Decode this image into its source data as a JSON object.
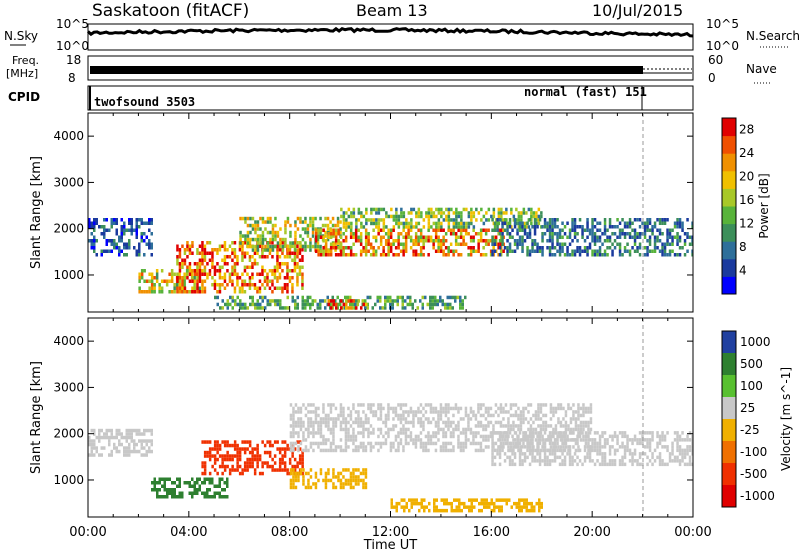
{
  "header": {
    "station": "Saskatoon (fitACF)",
    "beam": "Beam 13",
    "date": "10/Jul/2015"
  },
  "strips": {
    "nsky_label": "N.Sky",
    "nsky_ticks": [
      "10^5",
      "10^0"
    ],
    "nsearch_label": "N.Search",
    "nsearch_ticks": [
      "10^5",
      "10^0"
    ],
    "freq_label": "Freq.",
    "freq_unit": "[MHz]",
    "freq_ticks": [
      "18",
      "8"
    ],
    "nave_label": "Nave",
    "nave_ticks": [
      "60",
      "0"
    ],
    "cpid_label": "CPID",
    "cpid_mode1": "twofsound 3503",
    "cpid_mode2": "normal (fast) 151"
  },
  "chart_data": [
    {
      "type": "heatmap",
      "title": "",
      "ylabel": "Slant Range [km]",
      "xlabel": "",
      "xlim": [
        "00:00",
        "24:00"
      ],
      "ylim": [
        200,
        4500
      ],
      "yticks": [
        "1000",
        "2000",
        "3000",
        "4000"
      ],
      "colorbar": {
        "label": "Power [dB]",
        "ticks": [
          "4",
          "8",
          "12",
          "16",
          "20",
          "24",
          "28"
        ],
        "range": [
          0,
          30
        ],
        "colors": [
          "#0000ff",
          "#1a3a9e",
          "#2e6f9a",
          "#3c8f5a",
          "#58b33a",
          "#a8c828",
          "#f0c000",
          "#f09000",
          "#f05000",
          "#e00000"
        ]
      },
      "echo_regions": [
        {
          "t0": 0.0,
          "t1": 2.5,
          "r0": 1400,
          "r1": 2200,
          "value": 6
        },
        {
          "t0": 2.0,
          "t1": 4.5,
          "r0": 600,
          "r1": 1100,
          "value": 18
        },
        {
          "t0": 3.5,
          "t1": 8.5,
          "r0": 600,
          "r1": 1700,
          "value": 24
        },
        {
          "t0": 6.0,
          "t1": 10.0,
          "r0": 1500,
          "r1": 2200,
          "value": 16
        },
        {
          "t0": 9.0,
          "t1": 16.5,
          "r0": 1400,
          "r1": 2000,
          "value": 22
        },
        {
          "t0": 10.0,
          "t1": 18.0,
          "r0": 2000,
          "r1": 2400,
          "value": 14
        },
        {
          "t0": 16.0,
          "t1": 24.0,
          "r0": 1400,
          "r1": 2200,
          "value": 8
        },
        {
          "t0": 5.0,
          "t1": 15.0,
          "r0": 250,
          "r1": 500,
          "value": 12
        },
        {
          "t0": 9.5,
          "t1": 11.0,
          "r0": 250,
          "r1": 450,
          "value": 26
        }
      ]
    },
    {
      "type": "heatmap",
      "title": "",
      "ylabel": "Slant Range [km]",
      "xlabel": "Time UT",
      "xlim": [
        "00:00",
        "24:00"
      ],
      "ylim": [
        200,
        4500
      ],
      "xticks": [
        "00:00",
        "04:00",
        "08:00",
        "12:00",
        "16:00",
        "20:00",
        "00:00"
      ],
      "yticks": [
        "1000",
        "2000",
        "3000",
        "4000"
      ],
      "colorbar": {
        "label": "Velocity [m s^-1]",
        "ticks": [
          "1000",
          "500",
          "100",
          "25",
          "-25",
          "-100",
          "-500",
          "-1000"
        ],
        "colors": [
          "#2040a0",
          "#2e8030",
          "#58c030",
          "#c8c8c8",
          "#f0b000",
          "#f07000",
          "#f03000",
          "#e00000"
        ]
      },
      "echo_regions": [
        {
          "t0": 0.0,
          "t1": 2.5,
          "r0": 1500,
          "r1": 2100,
          "value": 0
        },
        {
          "t0": 2.5,
          "t1": 5.5,
          "r0": 600,
          "r1": 1000,
          "value": 300
        },
        {
          "t0": 4.5,
          "t1": 8.5,
          "r0": 1100,
          "r1": 1800,
          "value": -700
        },
        {
          "t0": 8.0,
          "t1": 11.0,
          "r0": 800,
          "r1": 1200,
          "value": -60
        },
        {
          "t0": 8.0,
          "t1": 20.0,
          "r0": 1600,
          "r1": 2600,
          "value": 0
        },
        {
          "t0": 12.0,
          "t1": 18.0,
          "r0": 300,
          "r1": 600,
          "value": -60
        },
        {
          "t0": 16.0,
          "t1": 24.0,
          "r0": 1300,
          "r1": 2000,
          "value": 0
        }
      ]
    }
  ]
}
